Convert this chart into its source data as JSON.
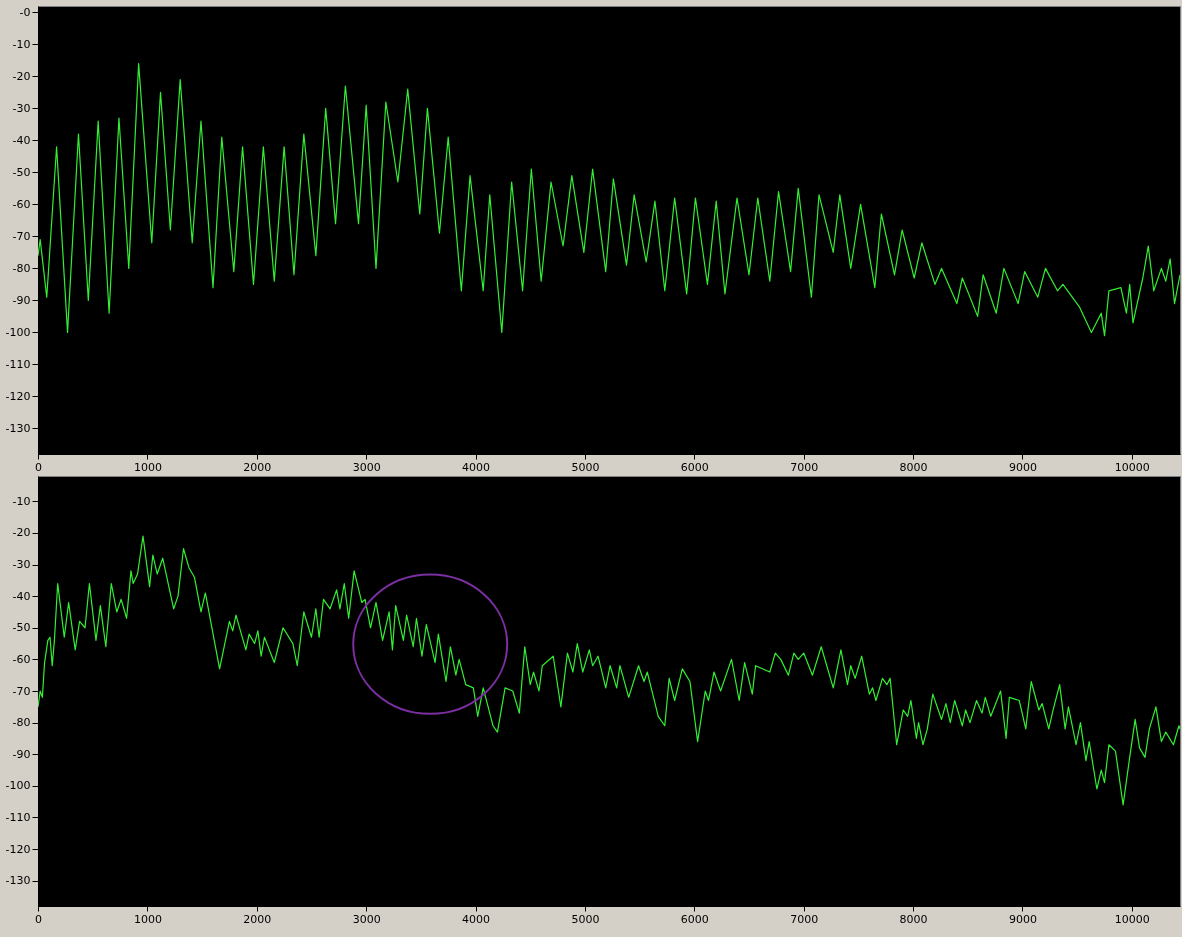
{
  "chart_data": [
    {
      "type": "line",
      "xlim": [
        0,
        10440
      ],
      "ylim": [
        -138,
        2
      ],
      "xticks": [
        0,
        1000,
        2000,
        3000,
        4000,
        5000,
        6000,
        7000,
        8000,
        9000,
        10000
      ],
      "yticks": [
        {
          "value": 0,
          "label": "-0"
        },
        -10,
        -20,
        -30,
        -40,
        -50,
        -60,
        -70,
        -80,
        -90,
        -100,
        -110,
        -120,
        -130
      ],
      "x": [
        0,
        20,
        80,
        170,
        270,
        370,
        460,
        550,
        650,
        740,
        830,
        920,
        1040,
        1120,
        1210,
        1300,
        1410,
        1490,
        1600,
        1680,
        1790,
        1870,
        1970,
        2060,
        2160,
        2250,
        2340,
        2430,
        2540,
        2630,
        2720,
        2810,
        2930,
        3000,
        3090,
        3180,
        3290,
        3380,
        3490,
        3560,
        3670,
        3750,
        3870,
        3950,
        4070,
        4130,
        4240,
        4330,
        4430,
        4510,
        4600,
        4690,
        4800,
        4880,
        4990,
        5070,
        5190,
        5260,
        5380,
        5450,
        5560,
        5640,
        5730,
        5820,
        5930,
        6010,
        6120,
        6200,
        6280,
        6390,
        6500,
        6580,
        6690,
        6770,
        6880,
        6950,
        7070,
        7140,
        7270,
        7330,
        7430,
        7520,
        7650,
        7710,
        7830,
        7900,
        8010,
        8080,
        8200,
        8260,
        8400,
        8450,
        8590,
        8640,
        8760,
        8830,
        8960,
        9020,
        9140,
        9210,
        9320,
        9370,
        9520,
        9630,
        9720,
        9750,
        9790,
        9900,
        9950,
        9980,
        10010,
        10100,
        10150,
        10200,
        10270,
        10310,
        10350,
        10390,
        10440
      ],
      "series": [
        {
          "color": "#33ee33",
          "values": [
            -76,
            -71,
            -89,
            -42,
            -100,
            -38,
            -90,
            -34,
            -94,
            -33,
            -80,
            -16,
            -72,
            -25,
            -68,
            -21,
            -72,
            -34,
            -86,
            -39,
            -81,
            -42,
            -85,
            -42,
            -84,
            -42,
            -82,
            -38,
            -76,
            -30,
            -66,
            -23,
            -66,
            -29,
            -80,
            -28,
            -53,
            -24,
            -63,
            -30,
            -69,
            -39,
            -87,
            -51,
            -87,
            -57,
            -100,
            -53,
            -87,
            -49,
            -84,
            -53,
            -73,
            -51,
            -75,
            -49,
            -81,
            -52,
            -79,
            -57,
            -78,
            -59,
            -87,
            -58,
            -88,
            -58,
            -85,
            -59,
            -88,
            -58,
            -82,
            -58,
            -84,
            -56,
            -81,
            -55,
            -89,
            -57,
            -75,
            -57,
            -80,
            -60,
            -86,
            -63,
            -82,
            -68,
            -83,
            -72,
            -85,
            -80,
            -91,
            -83,
            -95,
            -82,
            -94,
            -80,
            -91,
            -81,
            -89,
            -80,
            -87,
            -85,
            -92,
            -100,
            -94,
            -101,
            -87,
            -86,
            -94,
            -85,
            -97,
            -83,
            -73,
            -87,
            -80,
            -84,
            -77,
            -91,
            -82
          ]
        }
      ]
    },
    {
      "type": "line",
      "xlim": [
        0,
        10440
      ],
      "ylim": [
        -138,
        -2
      ],
      "xticks": [
        0,
        1000,
        2000,
        3000,
        4000,
        5000,
        6000,
        7000,
        8000,
        9000,
        10000
      ],
      "yticks": [
        -10,
        -20,
        -30,
        -40,
        -50,
        -60,
        -70,
        -80,
        -90,
        -100,
        -110,
        -120,
        -130
      ],
      "x": [
        0,
        20,
        40,
        60,
        90,
        110,
        130,
        150,
        180,
        240,
        280,
        340,
        380,
        430,
        470,
        530,
        570,
        620,
        670,
        720,
        760,
        810,
        850,
        870,
        910,
        960,
        1020,
        1050,
        1090,
        1140,
        1240,
        1280,
        1330,
        1380,
        1430,
        1490,
        1530,
        1660,
        1750,
        1780,
        1810,
        1900,
        1930,
        1980,
        2010,
        2040,
        2070,
        2160,
        2240,
        2330,
        2370,
        2430,
        2500,
        2540,
        2570,
        2610,
        2670,
        2730,
        2760,
        2800,
        2840,
        2890,
        2960,
        2990,
        3040,
        3090,
        3150,
        3210,
        3240,
        3270,
        3340,
        3370,
        3430,
        3460,
        3510,
        3550,
        3630,
        3660,
        3730,
        3770,
        3820,
        3850,
        3910,
        3980,
        4020,
        4070,
        4160,
        4200,
        4270,
        4340,
        4400,
        4450,
        4500,
        4530,
        4580,
        4610,
        4710,
        4780,
        4840,
        4890,
        4930,
        4980,
        5040,
        5070,
        5120,
        5190,
        5230,
        5290,
        5320,
        5400,
        5490,
        5540,
        5570,
        5670,
        5730,
        5770,
        5820,
        5890,
        5960,
        6030,
        6100,
        6130,
        6180,
        6240,
        6340,
        6410,
        6460,
        6530,
        6560,
        6690,
        6740,
        6790,
        6860,
        6910,
        6950,
        7000,
        7080,
        7160,
        7270,
        7340,
        7400,
        7430,
        7470,
        7530,
        7600,
        7630,
        7660,
        7720,
        7760,
        7790,
        7850,
        7910,
        7950,
        7980,
        8030,
        8050,
        8090,
        8130,
        8180,
        8260,
        8300,
        8340,
        8380,
        8450,
        8480,
        8520,
        8580,
        8630,
        8660,
        8710,
        8800,
        8850,
        8880,
        8970,
        9030,
        9080,
        9150,
        9180,
        9240,
        9280,
        9340,
        9390,
        9420,
        9490,
        9530,
        9580,
        9610,
        9680,
        9720,
        9750,
        9790,
        9850,
        9920,
        9980,
        10030,
        10070,
        10120,
        10160,
        10220,
        10270,
        10310,
        10380,
        10430,
        10440
      ],
      "series": [
        {
          "color": "#33ee33",
          "values": [
            -75,
            -70,
            -72,
            -61,
            -54,
            -53,
            -62,
            -54,
            -36,
            -53,
            -42,
            -57,
            -48,
            -50,
            -36,
            -54,
            -43,
            -56,
            -36,
            -45,
            -41,
            -47,
            -32,
            -36,
            -33,
            -21,
            -37,
            -27,
            -33,
            -28,
            -44,
            -40,
            -25,
            -31,
            -34,
            -45,
            -39,
            -63,
            -48,
            -51,
            -46,
            -57,
            -52,
            -55,
            -51,
            -59,
            -53,
            -61,
            -50,
            -55,
            -62,
            -45,
            -53,
            -44,
            -53,
            -41,
            -44,
            -38,
            -44,
            -36,
            -47,
            -32,
            -42,
            -41,
            -50,
            -42,
            -54,
            -45,
            -57,
            -43,
            -54,
            -46,
            -56,
            -47,
            -59,
            -49,
            -61,
            -52,
            -67,
            -56,
            -65,
            -60,
            -68,
            -69,
            -78,
            -69,
            -81,
            -83,
            -69,
            -70,
            -77,
            -56,
            -68,
            -64,
            -70,
            -62,
            -59,
            -75,
            -58,
            -64,
            -55,
            -64,
            -57,
            -62,
            -59,
            -69,
            -62,
            -69,
            -62,
            -72,
            -62,
            -67,
            -64,
            -78,
            -81,
            -66,
            -73,
            -63,
            -67,
            -86,
            -70,
            -73,
            -64,
            -70,
            -60,
            -73,
            -61,
            -71,
            -62,
            -64,
            -58,
            -60,
            -65,
            -58,
            -60,
            -58,
            -65,
            -56,
            -69,
            -57,
            -68,
            -62,
            -66,
            -59,
            -71,
            -69,
            -73,
            -66,
            -68,
            -66,
            -87,
            -76,
            -78,
            -73,
            -85,
            -80,
            -87,
            -82,
            -71,
            -79,
            -74,
            -80,
            -73,
            -81,
            -76,
            -80,
            -73,
            -77,
            -72,
            -78,
            -70,
            -85,
            -72,
            -73,
            -82,
            -67,
            -76,
            -74,
            -82,
            -76,
            -68,
            -82,
            -75,
            -87,
            -80,
            -92,
            -86,
            -101,
            -95,
            -99,
            -87,
            -89,
            -106,
            -91,
            -79,
            -88,
            -91,
            -82,
            -75,
            -86,
            -83,
            -87,
            -81,
            -82
          ]
        }
      ]
    }
  ]
}
